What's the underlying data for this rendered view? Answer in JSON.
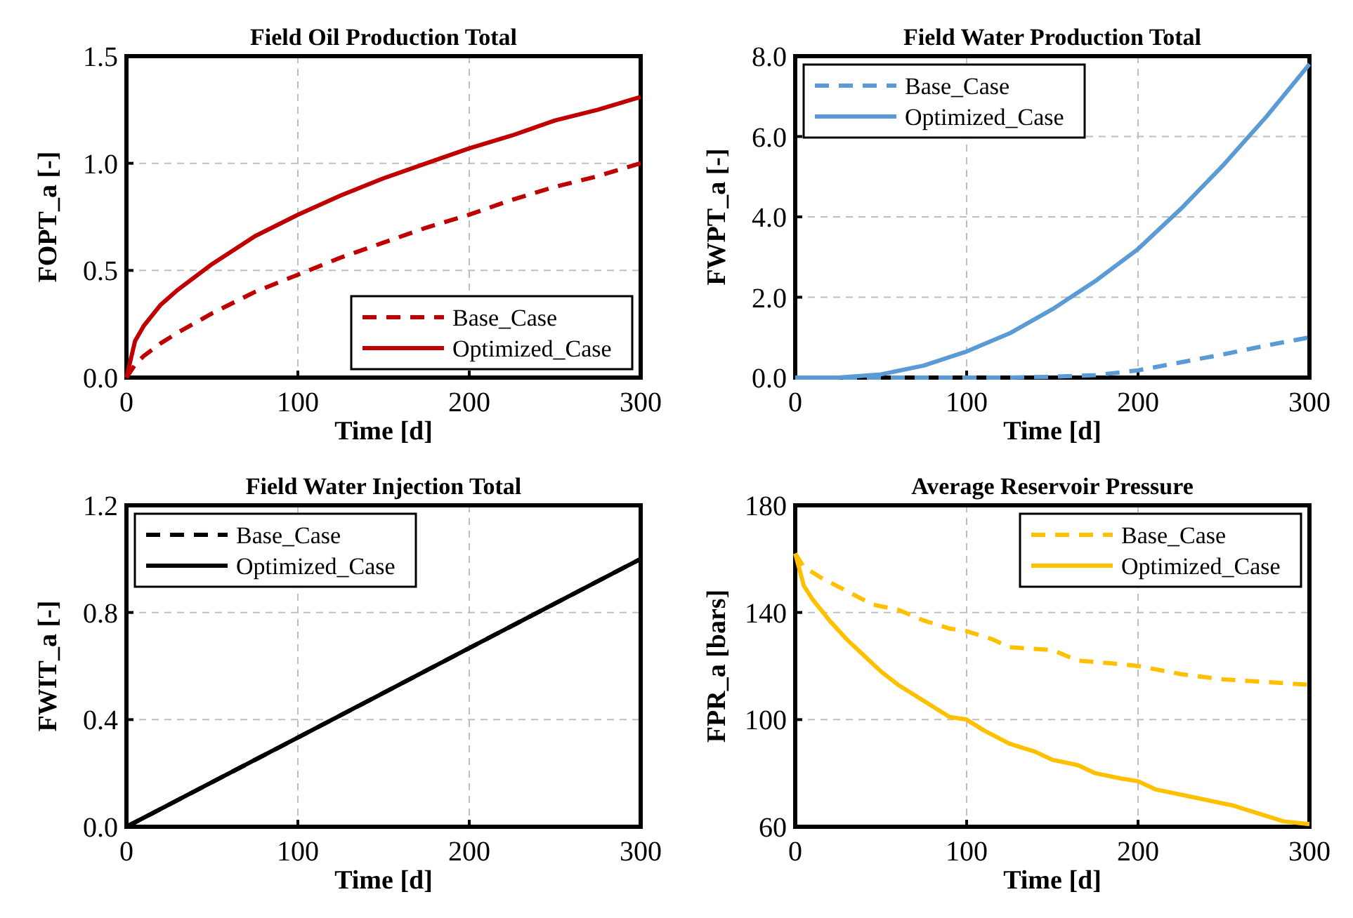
{
  "chart_data": [
    {
      "type": "line",
      "title": "Field Oil Production Total",
      "xlabel": "Time [d]",
      "ylabel": "FOPT_a [-]",
      "xlim": [
        0,
        300
      ],
      "xticks": [
        0,
        100,
        200,
        300
      ],
      "ylim": [
        0,
        1.5
      ],
      "yticks": [
        {
          "value": 0,
          "label": "0.0"
        },
        0.5,
        {
          "value": 1,
          "label": "1.0"
        },
        1.5
      ],
      "grid": true,
      "legend": "bottom right",
      "series": [
        {
          "name": "Base_Case",
          "color": "#c00000",
          "line_style": "dashed",
          "x": [
            0,
            5,
            10,
            20,
            30,
            50,
            75,
            100,
            125,
            150,
            175,
            200,
            225,
            250,
            275,
            300
          ],
          "values": [
            0,
            0.06,
            0.1,
            0.16,
            0.21,
            0.3,
            0.4,
            0.48,
            0.56,
            0.63,
            0.7,
            0.76,
            0.83,
            0.89,
            0.94,
            1.0
          ]
        },
        {
          "name": "Optimized_Case",
          "color": "#c00000",
          "line_style": "solid",
          "x": [
            0,
            5,
            10,
            20,
            30,
            50,
            75,
            100,
            125,
            150,
            175,
            200,
            225,
            250,
            275,
            300
          ],
          "values": [
            0,
            0.17,
            0.24,
            0.34,
            0.41,
            0.53,
            0.66,
            0.76,
            0.85,
            0.93,
            1.0,
            1.07,
            1.13,
            1.2,
            1.25,
            1.31
          ]
        }
      ]
    },
    {
      "type": "line",
      "title": "Field Water Production Total",
      "xlabel": "Time [d]",
      "ylabel": "FWPT_a [-]",
      "xlim": [
        0,
        300
      ],
      "xticks": [
        0,
        100,
        200,
        300
      ],
      "ylim": [
        0,
        8
      ],
      "yticks": [
        {
          "value": 0,
          "label": "0.0"
        },
        {
          "value": 2,
          "label": "2.0"
        },
        {
          "value": 4,
          "label": "4.0"
        },
        {
          "value": 6,
          "label": "6.0"
        },
        {
          "value": 8,
          "label": "8.0"
        }
      ],
      "grid": true,
      "legend": "top left",
      "series": [
        {
          "name": "Base_Case",
          "color": "#5b9bd5",
          "line_style": "dashed",
          "x": [
            0,
            50,
            100,
            125,
            150,
            175,
            200,
            225,
            250,
            275,
            300
          ],
          "values": [
            0,
            0,
            0,
            0,
            0.02,
            0.06,
            0.18,
            0.38,
            0.58,
            0.8,
            1.0
          ]
        },
        {
          "name": "Optimized_Case",
          "color": "#5b9bd5",
          "line_style": "solid",
          "x": [
            0,
            25,
            50,
            75,
            100,
            125,
            150,
            175,
            200,
            225,
            250,
            275,
            300
          ],
          "values": [
            0,
            0,
            0.08,
            0.3,
            0.65,
            1.1,
            1.7,
            2.4,
            3.2,
            4.2,
            5.3,
            6.5,
            7.8
          ]
        }
      ]
    },
    {
      "type": "line",
      "title": "Field Water Injection Total",
      "xlabel": "Time [d]",
      "ylabel": "FWIT_a [-]",
      "xlim": [
        0,
        300
      ],
      "xticks": [
        0,
        100,
        200,
        300
      ],
      "ylim": [
        0,
        1.2
      ],
      "yticks": [
        {
          "value": 0,
          "label": "0.0"
        },
        0.4,
        0.8,
        1.2
      ],
      "grid": true,
      "legend": "top left",
      "series": [
        {
          "name": "Base_Case",
          "color": "#000000",
          "line_style": "dashed",
          "x": [
            0,
            100,
            200,
            300
          ],
          "values": [
            0,
            0.333,
            0.667,
            1.0
          ]
        },
        {
          "name": "Optimized_Case",
          "color": "#000000",
          "line_style": "solid",
          "x": [
            0,
            100,
            200,
            300
          ],
          "values": [
            0,
            0.333,
            0.667,
            1.0
          ]
        }
      ]
    },
    {
      "type": "line",
      "title": "Average Reservoir Pressure",
      "xlabel": "Time [d]",
      "ylabel": "FPR_a [bars]",
      "xlim": [
        0,
        300
      ],
      "xticks": [
        0,
        100,
        200,
        300
      ],
      "ylim": [
        60,
        180
      ],
      "yticks": [
        60,
        100,
        140,
        180
      ],
      "grid": true,
      "legend": "top right",
      "series": [
        {
          "name": "Base_Case",
          "color": "#ffc000",
          "line_style": "dashed",
          "x": [
            0,
            5,
            15,
            30,
            45,
            60,
            75,
            90,
            100,
            115,
            125,
            150,
            165,
            185,
            200,
            225,
            250,
            275,
            300
          ],
          "values": [
            162,
            157,
            153,
            148,
            143,
            141,
            137,
            134,
            133,
            130,
            127,
            126,
            122,
            121,
            120,
            117,
            115,
            114,
            113
          ]
        },
        {
          "name": "Optimized_Case",
          "color": "#ffc000",
          "line_style": "solid",
          "x": [
            0,
            5,
            10,
            20,
            30,
            40,
            50,
            60,
            70,
            80,
            90,
            100,
            110,
            125,
            140,
            150,
            165,
            175,
            190,
            200,
            210,
            225,
            240,
            255,
            270,
            285,
            300
          ],
          "values": [
            162,
            150,
            145,
            137,
            130,
            124,
            118,
            113,
            109,
            105,
            101,
            100,
            96,
            91,
            88,
            85,
            83,
            80,
            78,
            77,
            74,
            72,
            70,
            68,
            65,
            62,
            61
          ]
        }
      ]
    }
  ]
}
